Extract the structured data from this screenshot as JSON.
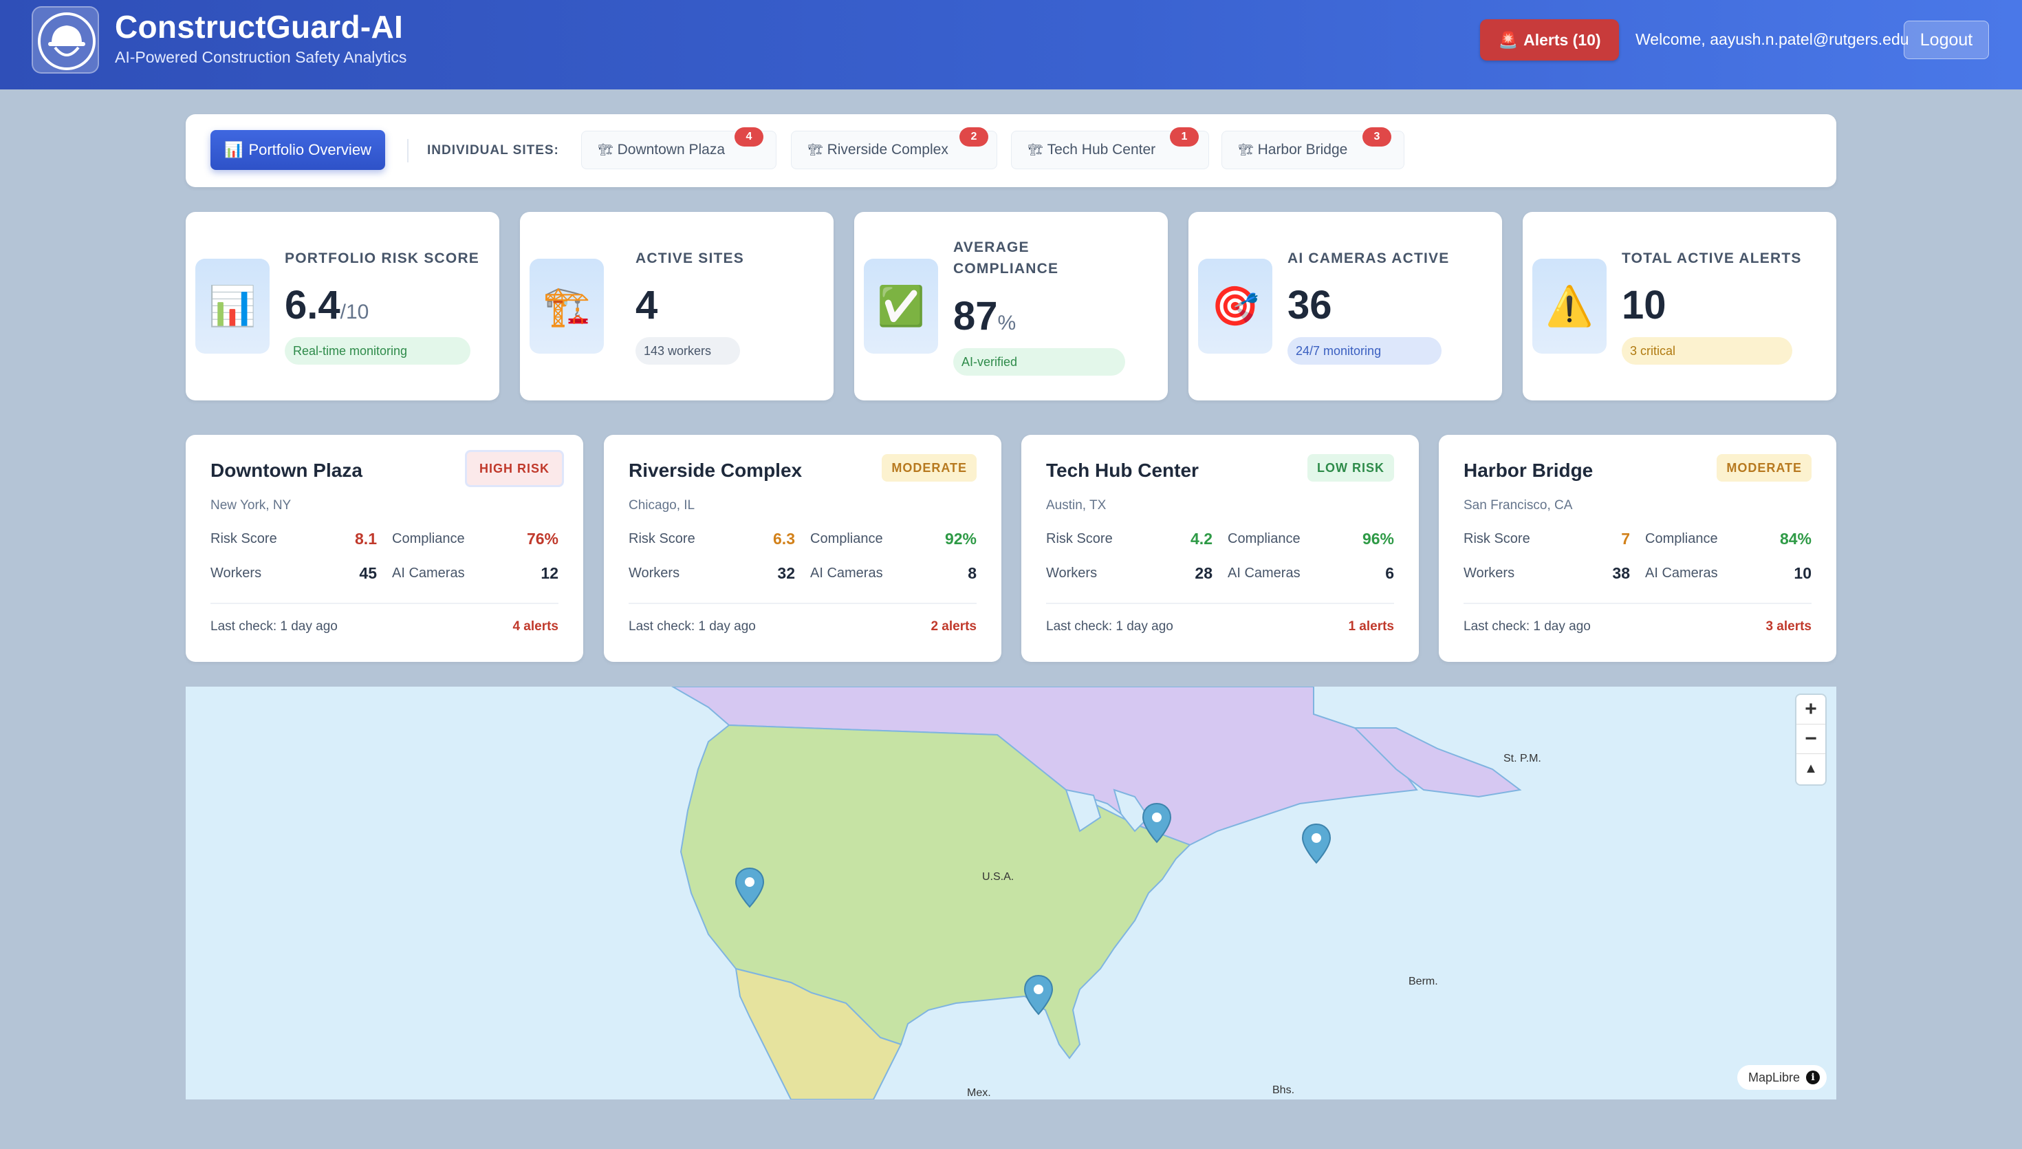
{
  "header": {
    "title": "ConstructGuard-AI",
    "subtitle": "AI-Powered Construction Safety Analytics",
    "alerts_label": "Alerts (10)",
    "alerts_icon": "🚨",
    "welcome": "Welcome, aayush.n.patel@rutgers.edu",
    "logout_label": "Logout"
  },
  "sitebar": {
    "portfolio_label": "Portfolio Overview",
    "portfolio_icon": "📊",
    "individual_label": "INDIVIDUAL SITES:",
    "tab_icon": "🏗",
    "tabs": [
      {
        "label": "Downtown Plaza",
        "badge": "4"
      },
      {
        "label": "Riverside Complex",
        "badge": "2"
      },
      {
        "label": "Tech Hub Center",
        "badge": "1"
      },
      {
        "label": "Harbor Bridge",
        "badge": "3"
      }
    ]
  },
  "stats": [
    {
      "label": "PORTFOLIO RISK SCORE",
      "value": "6.4",
      "unit": "/10",
      "pill": "Real-time monitoring",
      "icon": "📊"
    },
    {
      "label": "ACTIVE SITES",
      "value": "4",
      "unit": "",
      "pill": "143 workers",
      "icon": "🏗️"
    },
    {
      "label_line1": "AVERAGE",
      "label_line2": "COMPLIANCE",
      "value": "87",
      "unit": "%",
      "pill": "AI-verified",
      "icon": "✅"
    },
    {
      "label": "AI CAMERAS ACTIVE",
      "value": "36",
      "unit": "",
      "pill": "24/7 monitoring",
      "icon": "🎯"
    },
    {
      "label": "TOTAL ACTIVE ALERTS",
      "value": "10",
      "unit": "",
      "pill": "3 critical",
      "icon": "⚠️"
    }
  ],
  "site_labels": {
    "risk_score": "Risk Score",
    "compliance": "Compliance",
    "workers": "Workers",
    "ai_cameras": "AI Cameras"
  },
  "sites": [
    {
      "name": "Downtown Plaza",
      "location": "New York, NY",
      "badge": "HIGH RISK",
      "risk": "8.1",
      "compliance": "76%",
      "workers": "45",
      "cameras": "12",
      "last_check": "Last check: 1 day ago",
      "alerts": "4 alerts"
    },
    {
      "name": "Riverside Complex",
      "location": "Chicago, IL",
      "badge": "MODERATE",
      "risk": "6.3",
      "compliance": "92%",
      "workers": "32",
      "cameras": "8",
      "last_check": "Last check: 1 day ago",
      "alerts": "2 alerts"
    },
    {
      "name": "Tech Hub Center",
      "location": "Austin, TX",
      "badge": "LOW RISK",
      "risk": "4.2",
      "compliance": "96%",
      "workers": "28",
      "cameras": "6",
      "last_check": "Last check: 1 day ago",
      "alerts": "1 alerts"
    },
    {
      "name": "Harbor Bridge",
      "location": "San Francisco, CA",
      "badge": "MODERATE",
      "risk": "7",
      "compliance": "84%",
      "workers": "38",
      "cameras": "10",
      "last_check": "Last check: 1 day ago",
      "alerts": "3 alerts"
    }
  ],
  "map": {
    "labels": {
      "usa": "U.S.A.",
      "mex": "Mex.",
      "berm": "Berm.",
      "stpm": "St. P.M.",
      "bhs": "Bhs."
    },
    "zoom_in": "+",
    "zoom_out": "−",
    "compass": "▲",
    "attribution": "MapLibre",
    "info": "i"
  }
}
